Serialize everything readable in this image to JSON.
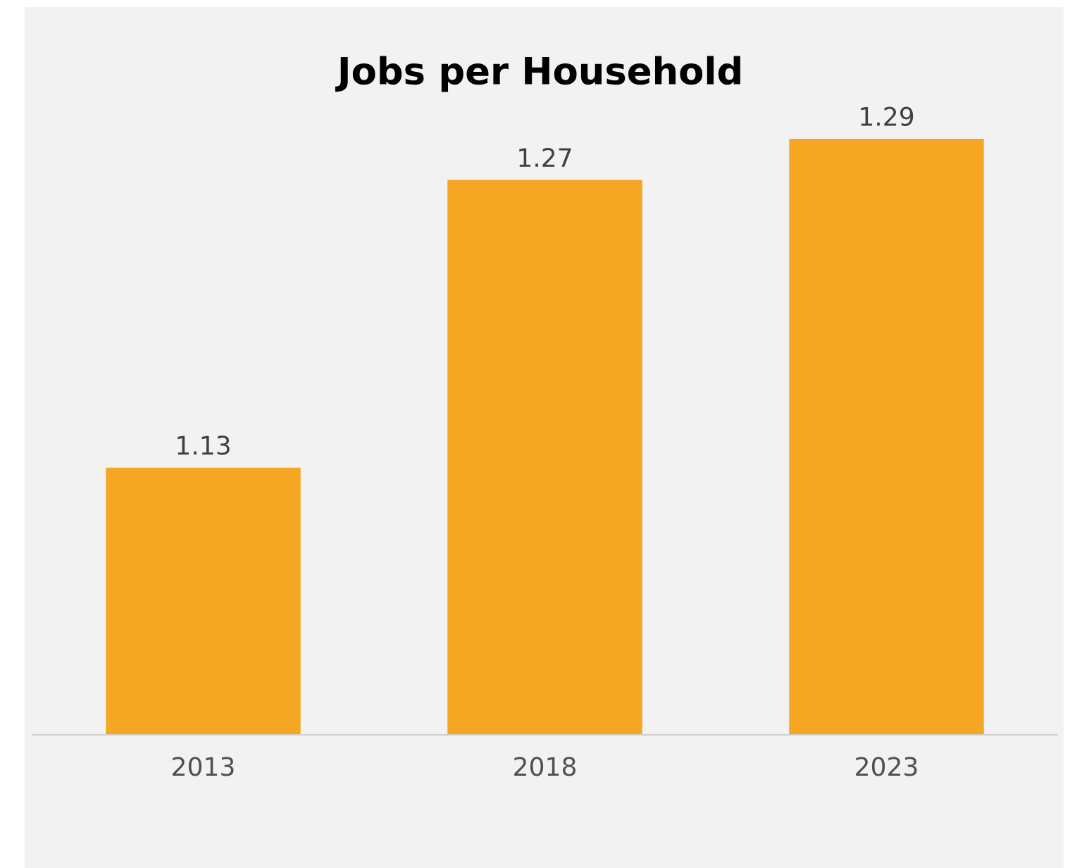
{
  "chart_data": {
    "type": "bar",
    "title": "Jobs per Household",
    "categories": [
      "2013",
      "2018",
      "2023"
    ],
    "values": [
      1.13,
      1.27,
      1.29
    ],
    "color": "#f5a623",
    "ylim": [
      1.0,
      1.29
    ],
    "data_labels": true,
    "grid": false,
    "tick_labels": "x"
  }
}
